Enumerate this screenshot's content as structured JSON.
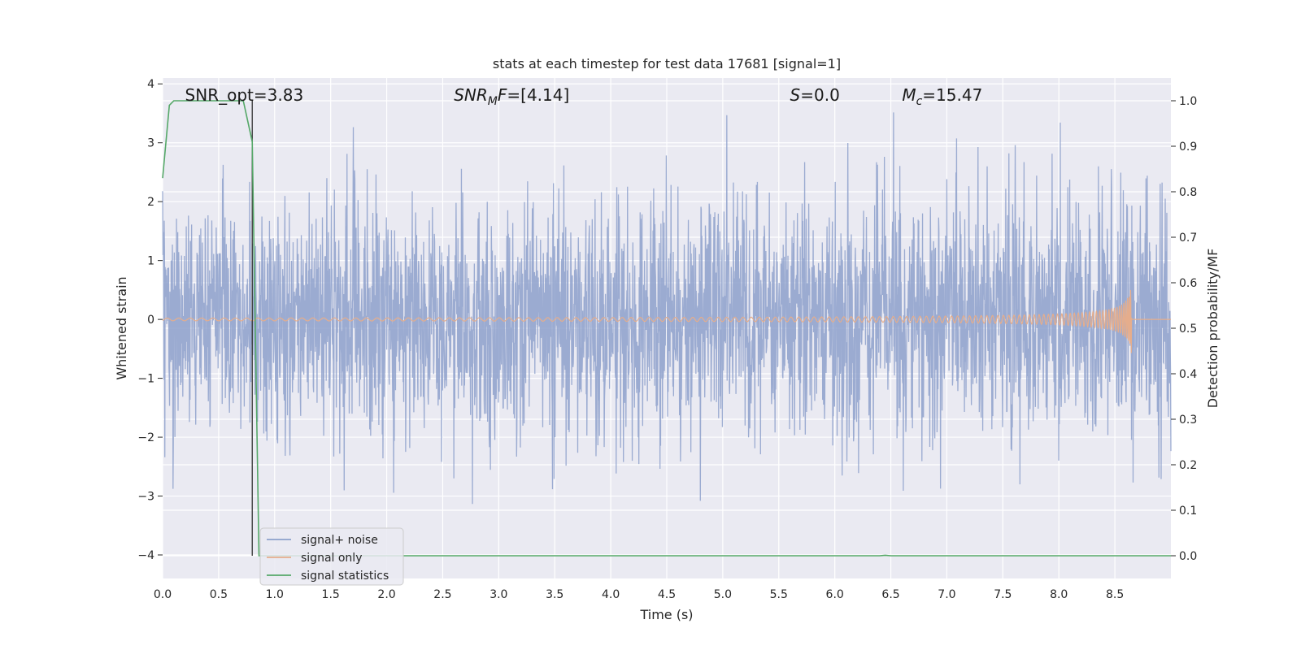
{
  "chart_data": {
    "type": "line",
    "title": "stats at each timestep for test data 17681 [signal=1]",
    "xlabel": "Time (s)",
    "ylabel_left": "Whitened strain",
    "ylabel_right": "Detection probability/MF",
    "xlim": [
      0.0,
      9.0
    ],
    "ylim_left": [
      -4.4,
      4.1
    ],
    "ylim_right": [
      -0.05,
      1.05
    ],
    "x_ticks": [
      "0.0",
      "0.5",
      "1.0",
      "1.5",
      "2.0",
      "2.5",
      "3.0",
      "3.5",
      "4.0",
      "4.5",
      "5.0",
      "5.5",
      "6.0",
      "6.5",
      "7.0",
      "7.5",
      "8.0",
      "8.5"
    ],
    "y_ticks_left": [
      "4",
      "3",
      "2",
      "1",
      "0",
      "−1",
      "−2",
      "−3",
      "−4"
    ],
    "y_ticks_right": [
      "1.0",
      "0.9",
      "0.8",
      "0.7",
      "0.6",
      "0.5",
      "0.4",
      "0.3",
      "0.2",
      "0.1",
      "0.0"
    ],
    "grid": true,
    "legend_position": "bottom-left",
    "annotations": [
      {
        "text": "SNR_opt=3.83",
        "x": 0.2
      },
      {
        "text": "SNR",
        "sub": "M",
        "rest": "F=[4.14]",
        "italic": true,
        "x": 2.6
      },
      {
        "text": "S",
        "rest": "=0.0",
        "italic": true,
        "x": 5.6
      },
      {
        "text": "M",
        "sub": "c",
        "rest": "=15.47",
        "italic": true,
        "x": 6.6
      }
    ],
    "marker_line_x": 0.8,
    "series": [
      {
        "name": "signal+ noise",
        "color": "#8da0cb",
        "axis": "left",
        "description": "whitened strain noise, roughly Gaussian with sigma ~1.0, spanning about -3.5 to 3.8",
        "sigma": 1.0
      },
      {
        "name": "signal only",
        "color": "#e5ad8c",
        "axis": "left",
        "description": "chirp signal growing toward merger",
        "merger_time": 8.65,
        "peak_amplitude": 0.65
      },
      {
        "name": "signal statistics",
        "color": "#55a868",
        "axis": "right",
        "x": [
          0.0,
          0.06,
          0.1,
          0.3,
          0.5,
          0.72,
          0.8,
          0.86,
          0.95,
          6.4,
          6.45,
          6.5,
          9.0
        ],
        "y": [
          0.83,
          0.99,
          1.0,
          1.0,
          1.0,
          1.0,
          0.91,
          0.0,
          0.0,
          0.0,
          0.001,
          0.0,
          0.0
        ]
      }
    ]
  }
}
